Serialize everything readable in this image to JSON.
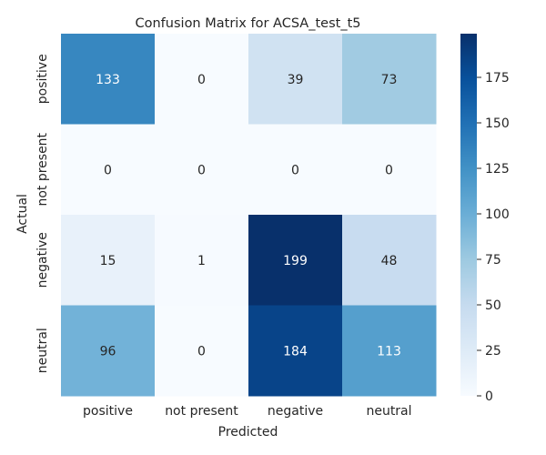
{
  "chart_data": {
    "type": "heatmap",
    "title": "Confusion Matrix for ACSA_test_t5",
    "xlabel": "Predicted",
    "ylabel": "Actual",
    "x_categories": [
      "positive",
      "not present",
      "negative",
      "neutral"
    ],
    "y_categories": [
      "positive",
      "not present",
      "negative",
      "neutral"
    ],
    "values": [
      [
        133,
        0,
        39,
        73
      ],
      [
        0,
        0,
        0,
        0
      ],
      [
        15,
        1,
        199,
        48
      ],
      [
        96,
        0,
        184,
        113
      ]
    ],
    "colormap": "Blues",
    "colorbar": {
      "min": 0,
      "max": 199,
      "ticks": [
        0,
        25,
        50,
        75,
        100,
        125,
        150,
        175
      ]
    },
    "grid": false,
    "legend": "colorbar-right"
  }
}
